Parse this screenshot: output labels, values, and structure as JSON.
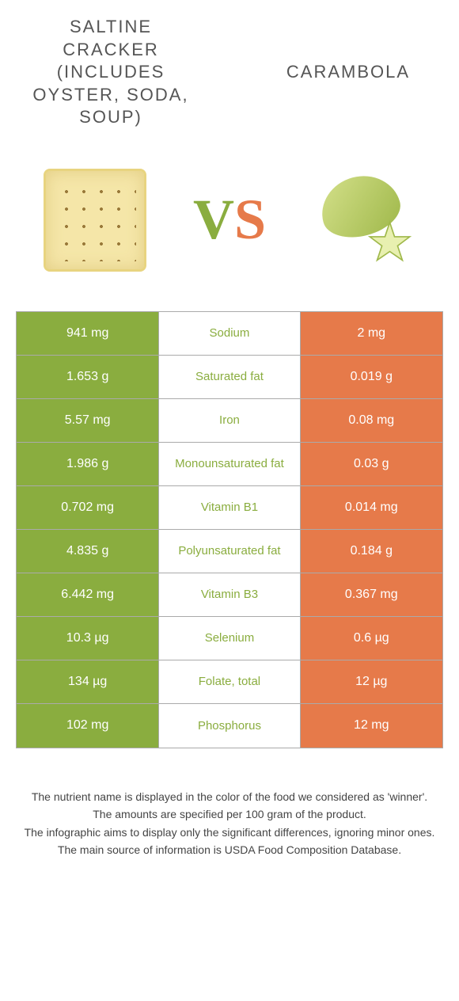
{
  "colors": {
    "green": "#8aad3f",
    "orange": "#e67a4a",
    "grey": "#555555"
  },
  "left_title": "SALTINE CRACKER (INCLUDES OYSTER, SODA, SOUP)",
  "right_title": "CARAMBOLA",
  "vs_v": "V",
  "vs_s": "S",
  "rows": [
    {
      "left": "941 mg",
      "mid": "Sodium",
      "right": "2 mg",
      "winner": "left"
    },
    {
      "left": "1.653 g",
      "mid": "Saturated fat",
      "right": "0.019 g",
      "winner": "left"
    },
    {
      "left": "5.57 mg",
      "mid": "Iron",
      "right": "0.08 mg",
      "winner": "left"
    },
    {
      "left": "1.986 g",
      "mid": "Monounsaturated fat",
      "right": "0.03 g",
      "winner": "left"
    },
    {
      "left": "0.702 mg",
      "mid": "Vitamin B1",
      "right": "0.014 mg",
      "winner": "left"
    },
    {
      "left": "4.835 g",
      "mid": "Polyunsaturated fat",
      "right": "0.184 g",
      "winner": "left"
    },
    {
      "left": "6.442 mg",
      "mid": "Vitamin B3",
      "right": "0.367 mg",
      "winner": "left"
    },
    {
      "left": "10.3 µg",
      "mid": "Selenium",
      "right": "0.6 µg",
      "winner": "left"
    },
    {
      "left": "134 µg",
      "mid": "Folate, total",
      "right": "12 µg",
      "winner": "left"
    },
    {
      "left": "102 mg",
      "mid": "Phosphorus",
      "right": "12 mg",
      "winner": "left"
    }
  ],
  "footer": [
    "The nutrient name is displayed in the color of the food we considered as 'winner'.",
    "The amounts are specified per 100 gram of the product.",
    "The infographic aims to display only the significant differences, ignoring minor ones.",
    "The main source of information is USDA Food Composition Database."
  ]
}
